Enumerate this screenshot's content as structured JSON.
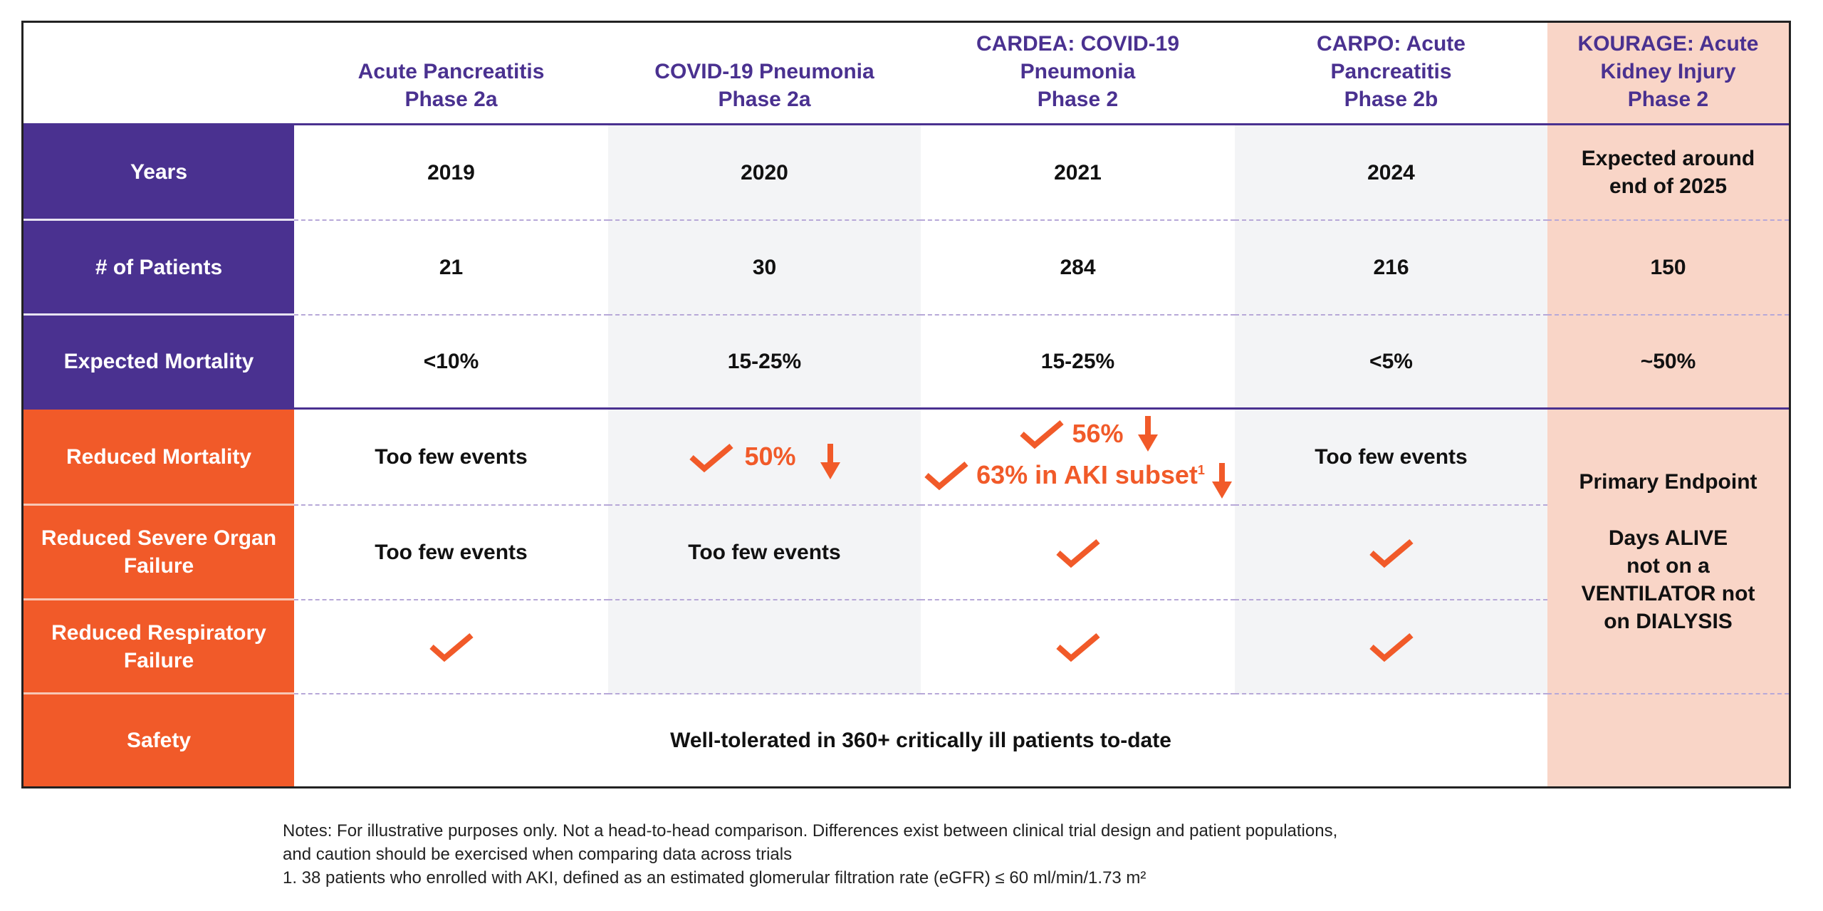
{
  "columns": [
    "Acute Pancreatitis\nPhase 2a",
    "COVID-19 Pneumonia\nPhase 2a",
    "CARDEA: COVID-19\nPneumonia\nPhase 2",
    "CARPO: Acute\nPancreatitis\nPhase 2b",
    "KOURAGE: Acute\nKidney Injury\nPhase 2"
  ],
  "rows": {
    "years": {
      "label": "Years",
      "values": [
        "2019",
        "2020",
        "2021",
        "2024",
        "Expected around end of 2025"
      ]
    },
    "patients": {
      "label": "# of Patients",
      "values": [
        "21",
        "30",
        "284",
        "216",
        "150"
      ]
    },
    "expected_mortality": {
      "label": "Expected Mortality",
      "values": [
        "<10%",
        "15-25%",
        "15-25%",
        "<5%",
        "~50%"
      ]
    },
    "reduced_mortality": {
      "label": "Reduced Mortality",
      "values": [
        "Too few events",
        "50%",
        "56%",
        "63% in AKI subset",
        "Too few events"
      ],
      "footnote_mark": "1"
    },
    "severe_organ": {
      "label": "Reduced Severe Organ Failure",
      "values": [
        "Too few events",
        "Too few events"
      ]
    },
    "respiratory": {
      "label": "Reduced Respiratory Failure"
    },
    "safety": {
      "label": "Safety",
      "value": "Well-tolerated in 360+ critically ill patients to-date"
    }
  },
  "kourage_endpoint": {
    "title": "Primary Endpoint",
    "text": "Days ALIVE\nnot on a\nVENTILATOR not\non DIALYSIS"
  },
  "notes": [
    "Notes: For illustrative purposes only. Not a head-to-head comparison. Differences exist between clinical trial design and patient populations,",
    "and caution should be exercised when comparing data across trials",
    "1. 38 patients who enrolled with AKI, defined as an estimated glomerular filtration rate (eGFR) ≤ 60 ml/min/1.73 m²"
  ],
  "colors": {
    "purple": "#4a3190",
    "orange": "#f15a29",
    "pink": "#f9d5c7",
    "gray": "#f3f4f6"
  }
}
